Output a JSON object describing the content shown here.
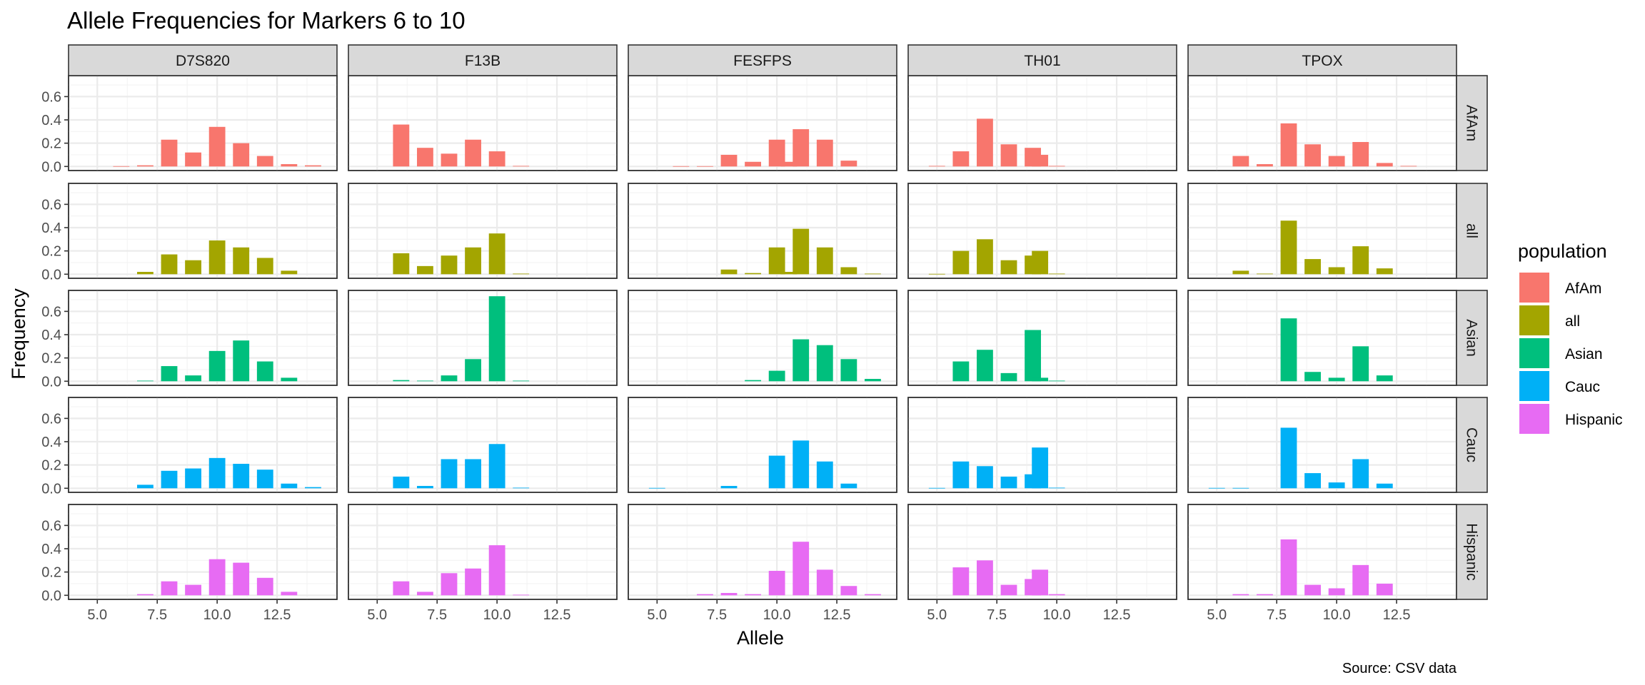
{
  "chart_data": {
    "type": "bar",
    "title": "Allele Frequencies for Markers 6 to 10",
    "xlabel": "Allele",
    "ylabel": "Frequency",
    "caption": "Source: CSV data",
    "xlim": [
      3.8,
      15.0
    ],
    "ylim": [
      -0.035,
      0.78
    ],
    "x_ticks": [
      5.0,
      7.5,
      10.0,
      12.5
    ],
    "x_tick_labels": [
      "5.0",
      "7.5",
      "10.0",
      "12.5"
    ],
    "y_ticks": [
      0.0,
      0.2,
      0.4,
      0.6
    ],
    "y_tick_labels": [
      "0.0",
      "0.2",
      "0.4",
      "0.6"
    ],
    "grid": true,
    "legend": {
      "title": "population",
      "position": "right",
      "entries": [
        {
          "name": "AfAm",
          "color": "#F8766D"
        },
        {
          "name": "all",
          "color": "#A3A500"
        },
        {
          "name": "Asian",
          "color": "#00BF7D"
        },
        {
          "name": "Cauc",
          "color": "#00B0F6"
        },
        {
          "name": "Hispanic",
          "color": "#E76BF3"
        }
      ]
    },
    "markers": [
      "D7S820",
      "F13B",
      "FESFPS",
      "TH01",
      "TPOX"
    ],
    "populations": [
      "AfAm",
      "all",
      "Asian",
      "Cauc",
      "Hispanic"
    ],
    "series": [
      {
        "marker": "D7S820",
        "population": "AfAm",
        "alleles": [
          6,
          7,
          8,
          9,
          10,
          11,
          12,
          13,
          14
        ],
        "values": [
          0.003,
          0.01,
          0.23,
          0.12,
          0.34,
          0.2,
          0.09,
          0.02,
          0.01
        ]
      },
      {
        "marker": "D7S820",
        "population": "all",
        "alleles": [
          7,
          8,
          9,
          10,
          11,
          12,
          13
        ],
        "values": [
          0.02,
          0.17,
          0.12,
          0.29,
          0.23,
          0.14,
          0.03
        ]
      },
      {
        "marker": "D7S820",
        "population": "Asian",
        "alleles": [
          7,
          8,
          9,
          10,
          11,
          12,
          13
        ],
        "values": [
          0.005,
          0.13,
          0.05,
          0.26,
          0.35,
          0.17,
          0.03
        ]
      },
      {
        "marker": "D7S820",
        "population": "Cauc",
        "alleles": [
          7,
          8,
          9,
          10,
          11,
          12,
          13,
          14
        ],
        "values": [
          0.03,
          0.15,
          0.17,
          0.26,
          0.21,
          0.16,
          0.04,
          0.01
        ]
      },
      {
        "marker": "D7S820",
        "population": "Hispanic",
        "alleles": [
          7,
          8,
          9,
          10,
          11,
          12,
          13
        ],
        "values": [
          0.01,
          0.12,
          0.09,
          0.31,
          0.28,
          0.15,
          0.03
        ]
      },
      {
        "marker": "F13B",
        "population": "AfAm",
        "alleles": [
          6,
          7,
          8,
          9,
          10,
          11
        ],
        "values": [
          0.36,
          0.16,
          0.11,
          0.23,
          0.13,
          0.005
        ]
      },
      {
        "marker": "F13B",
        "population": "all",
        "alleles": [
          6,
          7,
          8,
          9,
          10,
          11
        ],
        "values": [
          0.18,
          0.07,
          0.16,
          0.23,
          0.35,
          0.005
        ]
      },
      {
        "marker": "F13B",
        "population": "Asian",
        "alleles": [
          6,
          7,
          8,
          9,
          10,
          11
        ],
        "values": [
          0.01,
          0.005,
          0.05,
          0.19,
          0.73,
          0.005
        ]
      },
      {
        "marker": "F13B",
        "population": "Cauc",
        "alleles": [
          6,
          7,
          8,
          9,
          10,
          11
        ],
        "values": [
          0.1,
          0.02,
          0.25,
          0.25,
          0.38,
          0.005
        ]
      },
      {
        "marker": "F13B",
        "population": "Hispanic",
        "alleles": [
          6,
          7,
          8,
          9,
          10,
          11
        ],
        "values": [
          0.12,
          0.03,
          0.19,
          0.23,
          0.43,
          0.005
        ]
      },
      {
        "marker": "FESFPS",
        "population": "AfAm",
        "alleles": [
          6,
          7,
          8,
          9,
          10,
          10.5,
          11,
          12,
          13
        ],
        "values": [
          0.003,
          0.003,
          0.1,
          0.04,
          0.23,
          0.04,
          0.32,
          0.23,
          0.05
        ]
      },
      {
        "marker": "FESFPS",
        "population": "all",
        "alleles": [
          8,
          9,
          10,
          10.5,
          11,
          12,
          13,
          14
        ],
        "values": [
          0.04,
          0.01,
          0.23,
          0.02,
          0.39,
          0.23,
          0.06,
          0.005
        ]
      },
      {
        "marker": "FESFPS",
        "population": "Asian",
        "alleles": [
          9,
          10,
          11,
          12,
          13,
          14
        ],
        "values": [
          0.01,
          0.09,
          0.36,
          0.31,
          0.19,
          0.02
        ]
      },
      {
        "marker": "FESFPS",
        "population": "Cauc",
        "alleles": [
          5,
          8,
          10,
          11,
          12,
          13
        ],
        "values": [
          0.003,
          0.02,
          0.28,
          0.41,
          0.23,
          0.04
        ]
      },
      {
        "marker": "FESFPS",
        "population": "Hispanic",
        "alleles": [
          7,
          8,
          9,
          10,
          11,
          12,
          13,
          14
        ],
        "values": [
          0.01,
          0.02,
          0.01,
          0.21,
          0.46,
          0.22,
          0.08,
          0.01
        ]
      },
      {
        "marker": "TH01",
        "population": "AfAm",
        "alleles": [
          5,
          6,
          7,
          8,
          9,
          9.3,
          10
        ],
        "values": [
          0.005,
          0.13,
          0.41,
          0.19,
          0.16,
          0.1,
          0.005
        ]
      },
      {
        "marker": "TH01",
        "population": "all",
        "alleles": [
          5,
          6,
          7,
          8,
          9,
          9.3,
          10
        ],
        "values": [
          0.003,
          0.2,
          0.3,
          0.12,
          0.16,
          0.2,
          0.005
        ]
      },
      {
        "marker": "TH01",
        "population": "Asian",
        "alleles": [
          6,
          7,
          8,
          9,
          9.3,
          10
        ],
        "values": [
          0.17,
          0.27,
          0.07,
          0.44,
          0.03,
          0.005
        ]
      },
      {
        "marker": "TH01",
        "population": "Cauc",
        "alleles": [
          5,
          6,
          7,
          8,
          9,
          9.3,
          10
        ],
        "values": [
          0.003,
          0.23,
          0.19,
          0.1,
          0.12,
          0.35,
          0.005
        ]
      },
      {
        "marker": "TH01",
        "population": "Hispanic",
        "alleles": [
          6,
          7,
          8,
          9,
          9.3,
          10
        ],
        "values": [
          0.24,
          0.3,
          0.09,
          0.14,
          0.22,
          0.01
        ]
      },
      {
        "marker": "TPOX",
        "population": "AfAm",
        "alleles": [
          6,
          7,
          8,
          9,
          10,
          11,
          12,
          13
        ],
        "values": [
          0.09,
          0.02,
          0.37,
          0.19,
          0.09,
          0.21,
          0.03,
          0.005
        ]
      },
      {
        "marker": "TPOX",
        "population": "all",
        "alleles": [
          6,
          7,
          8,
          9,
          10,
          11,
          12
        ],
        "values": [
          0.03,
          0.005,
          0.46,
          0.13,
          0.06,
          0.24,
          0.05
        ]
      },
      {
        "marker": "TPOX",
        "population": "Asian",
        "alleles": [
          8,
          9,
          10,
          11,
          12
        ],
        "values": [
          0.54,
          0.08,
          0.03,
          0.3,
          0.05
        ]
      },
      {
        "marker": "TPOX",
        "population": "Cauc",
        "alleles": [
          5,
          6,
          8,
          9,
          10,
          11,
          12
        ],
        "values": [
          0.003,
          0.003,
          0.52,
          0.13,
          0.05,
          0.25,
          0.04
        ]
      },
      {
        "marker": "TPOX",
        "population": "Hispanic",
        "alleles": [
          6,
          7,
          8,
          9,
          10,
          11,
          12
        ],
        "values": [
          0.01,
          0.01,
          0.48,
          0.09,
          0.06,
          0.26,
          0.1
        ]
      }
    ]
  }
}
